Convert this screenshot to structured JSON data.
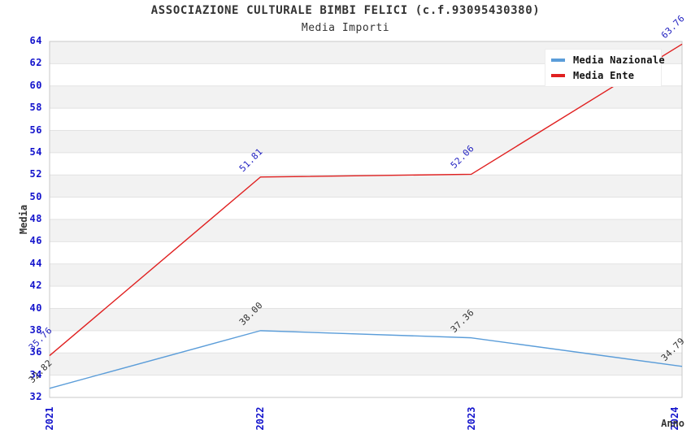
{
  "header": {
    "title": "ASSOCIAZIONE CULTURALE BIMBI FELICI (c.f.93095430380)",
    "subtitle": "Media Importi"
  },
  "chart_data": {
    "type": "line",
    "title": "ASSOCIAZIONE CULTURALE BIMBI FELICI (c.f.93095430380)",
    "subtitle": "Media Importi",
    "x": [
      2021,
      2022,
      2023,
      2024
    ],
    "series": [
      {
        "name": "Media Nazionale",
        "values": [
          32.82,
          38.0,
          37.36,
          34.79
        ],
        "color": "#5b9dd9",
        "label_color": "#333333"
      },
      {
        "name": "Media Ente",
        "values": [
          35.76,
          51.81,
          52.06,
          63.76
        ],
        "color": "#e02020",
        "label_color": "#1f1fc0"
      }
    ],
    "xlabel": "Anno",
    "ylabel": "Media",
    "ylim": [
      32,
      64
    ],
    "ytick_step": 2,
    "grid": "horizontal-bands",
    "band_color": "#f2f2f2",
    "gridline_color": "#e2e2e2",
    "plot_border_color": "#c9c9c9",
    "axis_tick_color": "#1414cc",
    "legend_position": "top-right",
    "legend_labels": [
      "Media Nazionale",
      "Media Ente"
    ]
  }
}
